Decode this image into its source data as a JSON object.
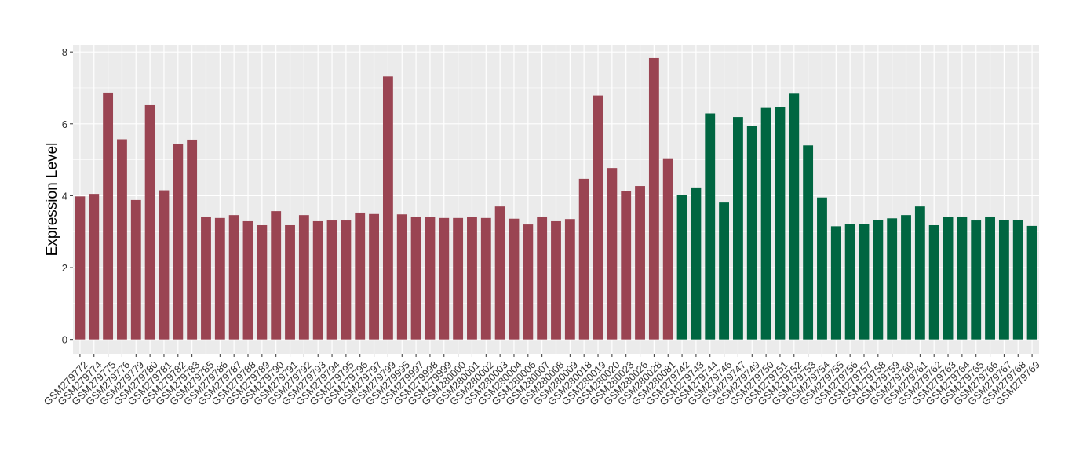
{
  "chart_data": {
    "type": "bar",
    "title": "",
    "xlabel": "",
    "ylabel": "Expression Level",
    "ylim": [
      -0.4,
      8.2
    ],
    "yticks": [
      0,
      2,
      4,
      6,
      8
    ],
    "grid": true,
    "legend": "none",
    "colors": {
      "group1": "#9a4452",
      "group2": "#006641",
      "panel": "#ebebeb",
      "grid": "#ffffff"
    },
    "categories": [
      "GSM279772",
      "GSM279774",
      "GSM279775",
      "GSM279776",
      "GSM279779",
      "GSM279780",
      "GSM279781",
      "GSM279782",
      "GSM279783",
      "GSM279785",
      "GSM279786",
      "GSM279787",
      "GSM279788",
      "GSM279789",
      "GSM279790",
      "GSM279791",
      "GSM279792",
      "GSM279793",
      "GSM279794",
      "GSM279795",
      "GSM279796",
      "GSM279797",
      "GSM279799",
      "GSM279995",
      "GSM279997",
      "GSM279998",
      "GSM279999",
      "GSM280000",
      "GSM280001",
      "GSM280002",
      "GSM280003",
      "GSM280004",
      "GSM280006",
      "GSM280007",
      "GSM280008",
      "GSM280009",
      "GSM280018",
      "GSM280019",
      "GSM280020",
      "GSM280023",
      "GSM280026",
      "GSM280028",
      "GSM280081",
      "GSM279742",
      "GSM279743",
      "GSM279744",
      "GSM279746",
      "GSM279747",
      "GSM279749",
      "GSM279750",
      "GSM279751",
      "GSM279752",
      "GSM279753",
      "GSM279754",
      "GSM279755",
      "GSM279756",
      "GSM279757",
      "GSM279758",
      "GSM279759",
      "GSM279760",
      "GSM279761",
      "GSM279762",
      "GSM279763",
      "GSM279764",
      "GSM279765",
      "GSM279766",
      "GSM279767",
      "GSM279768",
      "GSM279769"
    ],
    "values": [
      3.98,
      4.05,
      6.87,
      5.57,
      3.88,
      6.52,
      4.15,
      5.45,
      5.56,
      3.42,
      3.38,
      3.46,
      3.29,
      3.18,
      3.57,
      3.18,
      3.46,
      3.29,
      3.31,
      3.31,
      3.53,
      3.49,
      7.32,
      3.48,
      3.42,
      3.4,
      3.38,
      3.38,
      3.4,
      3.38,
      3.7,
      3.36,
      3.2,
      3.42,
      3.29,
      3.35,
      4.47,
      6.79,
      4.77,
      4.13,
      4.27,
      7.83,
      5.02,
      4.03,
      4.23,
      6.29,
      3.81,
      6.19,
      5.95,
      6.44,
      6.46,
      6.84,
      5.4,
      3.95,
      3.15,
      3.22,
      3.22,
      3.33,
      3.37,
      3.46,
      3.7,
      3.18,
      3.4,
      3.42,
      3.31,
      3.42,
      3.33,
      3.33,
      3.16
    ],
    "groups": [
      "g1",
      "g1",
      "g1",
      "g1",
      "g1",
      "g1",
      "g1",
      "g1",
      "g1",
      "g1",
      "g1",
      "g1",
      "g1",
      "g1",
      "g1",
      "g1",
      "g1",
      "g1",
      "g1",
      "g1",
      "g1",
      "g1",
      "g1",
      "g1",
      "g1",
      "g1",
      "g1",
      "g1",
      "g1",
      "g1",
      "g1",
      "g1",
      "g1",
      "g1",
      "g1",
      "g1",
      "g1",
      "g1",
      "g1",
      "g1",
      "g1",
      "g1",
      "g1",
      "g2",
      "g2",
      "g2",
      "g2",
      "g2",
      "g2",
      "g2",
      "g2",
      "g2",
      "g2",
      "g2",
      "g2",
      "g2",
      "g2",
      "g2",
      "g2",
      "g2",
      "g2",
      "g2",
      "g2",
      "g2",
      "g2",
      "g2",
      "g2",
      "g2",
      "g2"
    ]
  }
}
